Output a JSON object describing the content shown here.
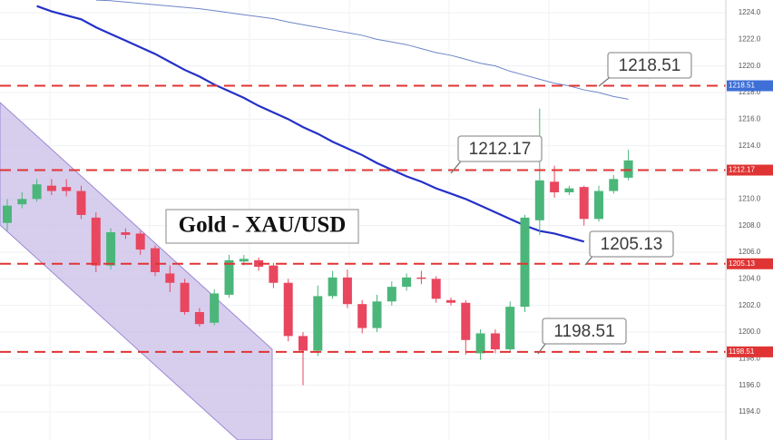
{
  "chart_data": {
    "type": "candlestick",
    "title": "Gold - XAU/USD",
    "up_color": "#4bb67a",
    "down_color": "#e8475f",
    "ylim": [
      1193,
      1225
    ],
    "yticks": [
      {
        "value": 1194,
        "label": "1194.0"
      },
      {
        "value": 1196,
        "label": "1196.0"
      },
      {
        "value": 1198,
        "label": "1198.0"
      },
      {
        "value": 1200,
        "label": "1200.0"
      },
      {
        "value": 1202,
        "label": "1202.0"
      },
      {
        "value": 1204,
        "label": "1204.0"
      },
      {
        "value": 1206,
        "label": "1206.0"
      },
      {
        "value": 1208,
        "label": "1208.0"
      },
      {
        "value": 1210,
        "label": "1210.0"
      },
      {
        "value": 1212,
        "label": "1212.0"
      },
      {
        "value": 1214,
        "label": "1214.0"
      },
      {
        "value": 1216,
        "label": "1216.0"
      },
      {
        "value": 1218,
        "label": "1218.0"
      },
      {
        "value": 1220,
        "label": "1220.0"
      },
      {
        "value": 1222,
        "label": "1222.0"
      },
      {
        "value": 1224,
        "label": "1224.0"
      }
    ],
    "grid": true,
    "open": [
      1208.2,
      1209.6,
      1210.0,
      1211.0,
      1210.9,
      1210.6,
      1208.6,
      1205.0,
      1207.5,
      1207.4,
      1206.3,
      1204.4,
      1203.7,
      1201.5,
      1200.7,
      1202.8,
      1205.3,
      1205.4,
      1205.0,
      1203.7,
      1199.7,
      1198.6,
      1202.7,
      1204.1,
      1202.1,
      1200.3,
      1202.3,
      1203.4,
      1204.1,
      1204.0,
      1202.4,
      1202.2,
      1198.4,
      1199.9,
      1198.7,
      1201.9,
      1208.4,
      1211.3,
      1210.5,
      1210.9,
      1208.5,
      1210.6,
      1211.6
    ],
    "high": [
      1210.0,
      1210.5,
      1211.5,
      1211.5,
      1211.5,
      1211.0,
      1209.0,
      1207.8,
      1207.8,
      1207.6,
      1206.5,
      1205.0,
      1204.0,
      1201.8,
      1203.2,
      1205.8,
      1205.8,
      1205.6,
      1205.2,
      1204.0,
      1200.0,
      1203.5,
      1204.6,
      1204.7,
      1202.4,
      1202.8,
      1203.8,
      1204.4,
      1204.6,
      1204.2,
      1202.6,
      1202.4,
      1200.2,
      1200.2,
      1202.3,
      1208.8,
      1216.8,
      1212.5,
      1211.0,
      1211.0,
      1211.0,
      1211.8,
      1213.7
    ],
    "low": [
      1207.6,
      1209.3,
      1209.8,
      1210.3,
      1210.2,
      1208.5,
      1204.5,
      1204.7,
      1207.0,
      1205.8,
      1204.2,
      1203.0,
      1201.3,
      1200.4,
      1200.5,
      1202.6,
      1205.0,
      1204.6,
      1203.3,
      1199.3,
      1196.0,
      1198.2,
      1202.5,
      1201.8,
      1199.9,
      1200.0,
      1202.0,
      1203.1,
      1203.6,
      1202.2,
      1202.0,
      1198.3,
      1197.9,
      1198.4,
      1198.5,
      1201.5,
      1207.3,
      1210.1,
      1210.3,
      1208.0,
      1208.3,
      1210.4,
      1211.4
    ],
    "close": [
      1209.5,
      1210.0,
      1211.1,
      1210.6,
      1210.6,
      1208.8,
      1205.0,
      1207.5,
      1207.3,
      1206.2,
      1204.5,
      1203.7,
      1201.5,
      1200.6,
      1202.9,
      1205.4,
      1205.5,
      1204.9,
      1203.7,
      1199.7,
      1198.6,
      1202.7,
      1204.1,
      1202.1,
      1200.3,
      1202.3,
      1203.4,
      1204.1,
      1204.0,
      1202.5,
      1202.2,
      1199.4,
      1199.9,
      1198.7,
      1201.9,
      1208.6,
      1211.4,
      1210.5,
      1210.8,
      1208.5,
      1210.6,
      1211.5,
      1212.9
    ],
    "series": [
      {
        "color": "#2430c8",
        "width": 2.2,
        "values": [
          null,
          null,
          1224.5,
          1224.1,
          1223.8,
          1223.5,
          1222.9,
          1222.4,
          1221.9,
          1221.4,
          1220.9,
          1220.3,
          1219.7,
          1219.2,
          1218.6,
          1218.1,
          1217.6,
          1217.0,
          1216.5,
          1216.0,
          1215.4,
          1214.9,
          1214.3,
          1213.8,
          1213.3,
          1212.7,
          1212.2,
          1211.7,
          1211.3,
          1210.8,
          1210.4,
          1210.0,
          1209.5,
          1209.0,
          1208.5,
          1208.0,
          1207.6,
          1207.4,
          1207.1,
          1206.8,
          null,
          null,
          null
        ]
      },
      {
        "color": "#6d86c9",
        "width": 1,
        "values": [
          null,
          null,
          null,
          null,
          null,
          null,
          1224.95,
          1224.9,
          1224.8,
          1224.7,
          1224.6,
          1224.5,
          1224.4,
          1224.3,
          1224.15,
          1224.0,
          1223.85,
          1223.7,
          1223.55,
          1223.3,
          1223.1,
          1222.9,
          1222.7,
          1222.5,
          1222.3,
          1222.0,
          1221.8,
          1221.6,
          1221.3,
          1221.0,
          1220.8,
          1220.5,
          1220.2,
          1220.0,
          1219.6,
          1219.3,
          1219.0,
          1218.7,
          1218.5,
          1218.2,
          1218.0,
          1217.7,
          1217.5
        ]
      }
    ],
    "levels": [
      {
        "value": 1218.51,
        "label": "1218.51",
        "color": "#e03434"
      },
      {
        "value": 1212.17,
        "label": "1212.17",
        "color": "#e03434"
      },
      {
        "value": 1205.13,
        "label": "1205.13",
        "color": "#e03434"
      },
      {
        "value": 1198.51,
        "label": "1198.51",
        "color": "#e03434"
      }
    ]
  }
}
